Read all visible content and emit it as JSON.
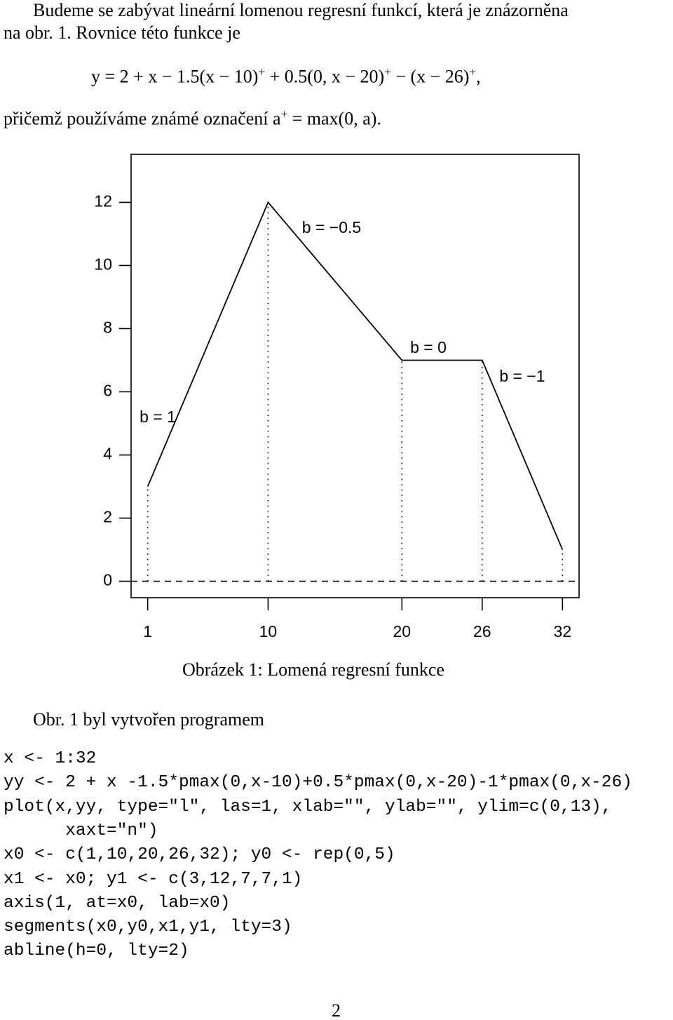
{
  "intro": {
    "lines": [
      "Budeme se zabývat lineární lomenou regresní funkcí, která je znázorněna",
      "na obr. 1. Rovnice této funkce je"
    ]
  },
  "equation": [
    "y = 2 + x − 1.5(x − 10)",
    "+",
    " + 0.5(0, x − 20)",
    "+",
    " − (x − 26)",
    "+",
    ","
  ],
  "notation": [
    "přičemž používáme známé označení a",
    "+",
    " = max(0, a)."
  ],
  "chart_data": {
    "type": "line",
    "x": [
      1,
      10,
      20,
      26,
      32
    ],
    "values": [
      3,
      12,
      7,
      7,
      1
    ],
    "color": "#000000",
    "xlim": [
      -0.24,
      33.24
    ],
    "ylim": [
      -0.52,
      13.52
    ],
    "xticks": [
      1,
      10,
      20,
      26,
      32
    ],
    "yticks": [
      0,
      2,
      4,
      6,
      8,
      10,
      12
    ],
    "hline": 0,
    "annotations": [
      "b = 1",
      "b = −0.5",
      "b = 0",
      "b = −1"
    ]
  },
  "caption": "Obrázek 1: Lomená regresní funkce",
  "program_intro": "Obr. 1 byl vytvořen programem",
  "code": [
    "x <- 1:32",
    "yy <- 2 + x -1.5*pmax(0,x-10)+0.5*pmax(0,x-20)-1*pmax(0,x-26)",
    "plot(x,yy, type=\"l\", las=1, xlab=\"\", ylab=\"\", ylim=c(0,13),",
    "      xaxt=\"n\")",
    "x0 <- c(1,10,20,26,32); y0 <- rep(0,5)",
    "x1 <- x0; y1 <- c(3,12,7,7,1)",
    "axis(1, at=x0, lab=x0)",
    "segments(x0,y0,x1,y1, lty=3)",
    "abline(h=0, lty=2)"
  ],
  "page_number": "2"
}
